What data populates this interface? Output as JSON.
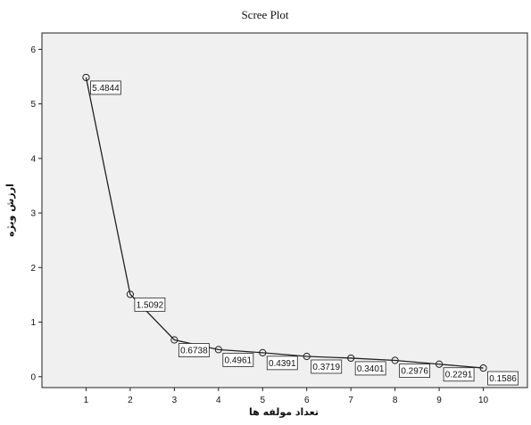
{
  "chart_data": {
    "type": "line",
    "title": "Scree Plot",
    "xlabel": "تعداد مولفه ها",
    "ylabel": "ارزش ویژه",
    "x": [
      1,
      2,
      3,
      4,
      5,
      6,
      7,
      8,
      9,
      10
    ],
    "x_ticks": [
      "1",
      "2",
      "3",
      "4",
      "5",
      "6",
      "7",
      "8",
      "9",
      "10"
    ],
    "y_ticks": [
      "0",
      "1",
      "2",
      "3",
      "4",
      "5",
      "6"
    ],
    "values": [
      5.4844,
      1.5092,
      0.6738,
      0.4961,
      0.4391,
      0.3719,
      0.3401,
      0.2976,
      0.2291,
      0.1586
    ],
    "labels": [
      "5.4844",
      "1.5092",
      "0.6738",
      "0.4961",
      "0.4391",
      "0.3719",
      "0.3401",
      "0.2976",
      "0.2291",
      "0.1586"
    ],
    "xlim": [
      0,
      11
    ],
    "ylim": [
      -0.2,
      6.3
    ],
    "grid": false,
    "marker": "open-circle",
    "colors": {
      "plot_background": "#f0f0f0",
      "line": "#222222",
      "axes": "#222222"
    }
  }
}
